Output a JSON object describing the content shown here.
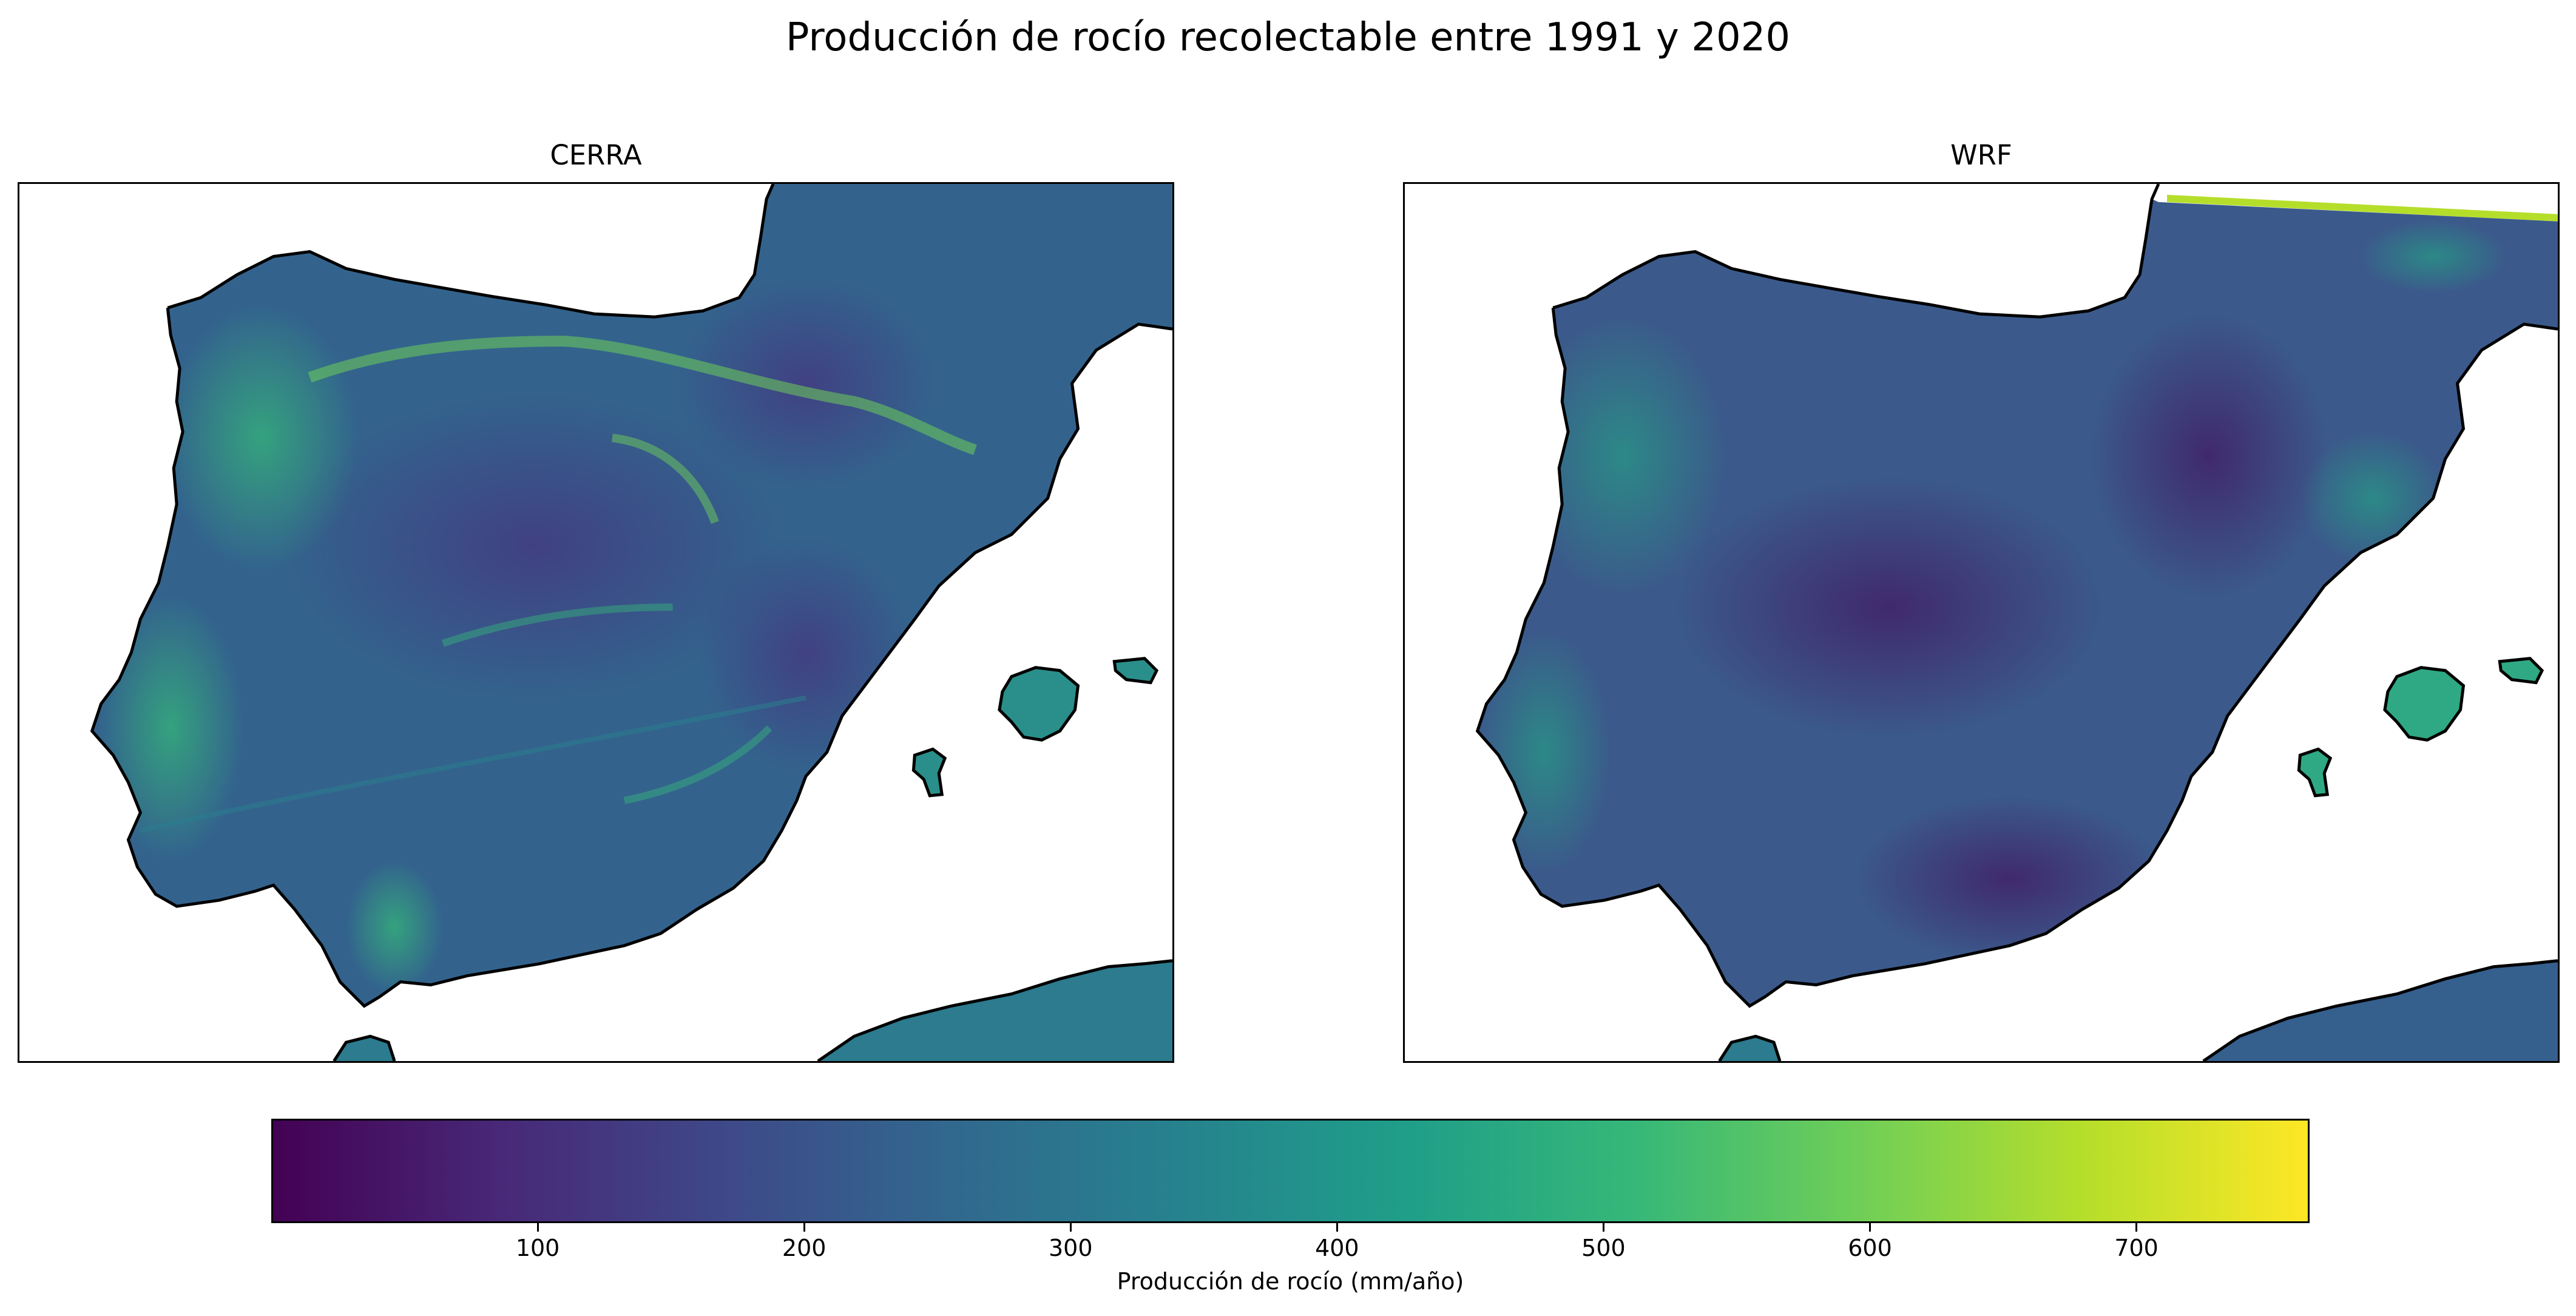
{
  "figure": {
    "title": "Producción de rocío recolectable entre 1991 y 2020"
  },
  "panels": [
    {
      "title": "CERRA",
      "dominant_color": "#31688e",
      "highlight_color": "#35b779",
      "dark_color": "#46327e"
    },
    {
      "title": "WRF",
      "dominant_color": "#3b528b",
      "highlight_color": "#22a884",
      "dark_color": "#440154"
    }
  ],
  "colorbar": {
    "label": "Producción de rocío (mm/año)",
    "colormap": "viridis",
    "min": 0,
    "max": 765,
    "ticks": [
      {
        "value": 100,
        "label": "100"
      },
      {
        "value": 200,
        "label": "200"
      },
      {
        "value": 300,
        "label": "300"
      },
      {
        "value": 400,
        "label": "400"
      },
      {
        "value": 500,
        "label": "500"
      },
      {
        "value": 600,
        "label": "600"
      },
      {
        "value": 700,
        "label": "700"
      }
    ],
    "stops": [
      "#440154",
      "#482878",
      "#3e4989",
      "#31688e",
      "#26828e",
      "#1f9e89",
      "#35b779",
      "#6ece58",
      "#b5de2b",
      "#fde725"
    ]
  }
}
